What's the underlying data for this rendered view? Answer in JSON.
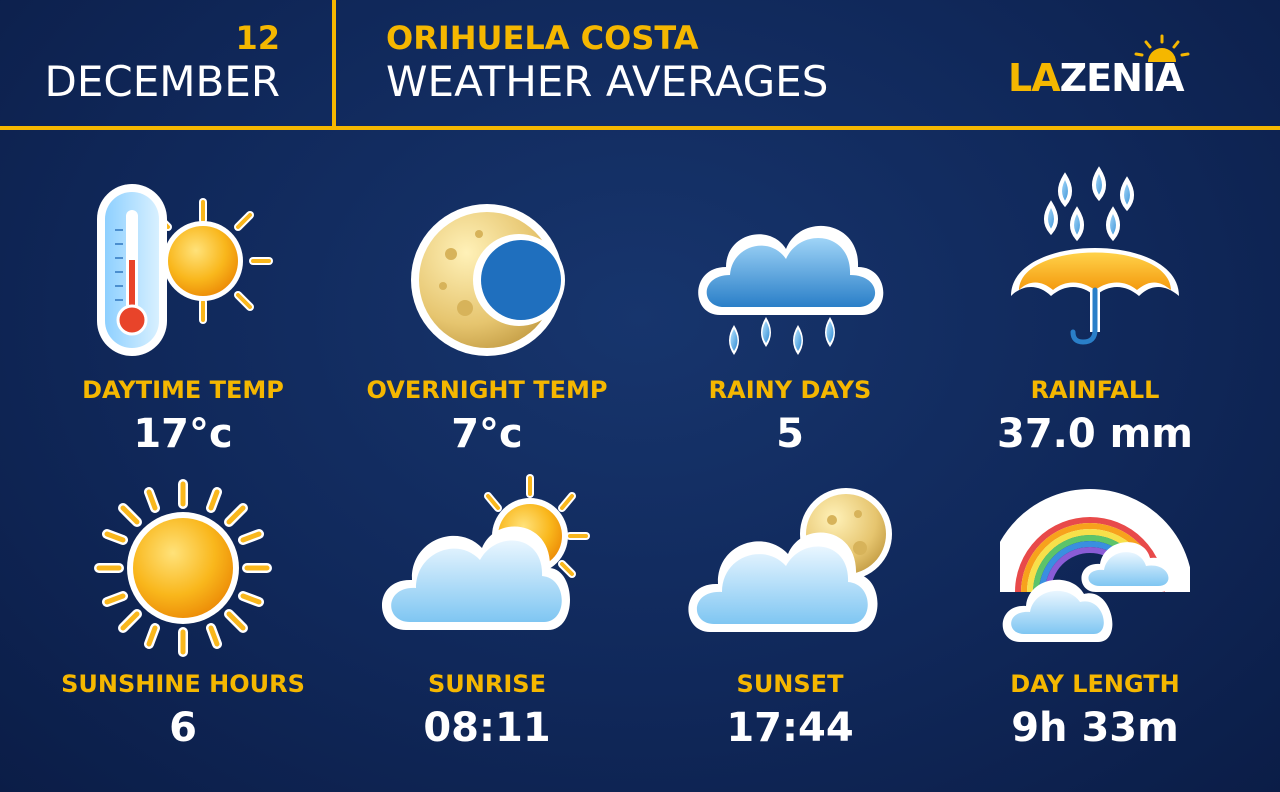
{
  "header": {
    "day": "12",
    "month": "DECEMBER",
    "place": "ORIHUELA COSTA",
    "subtitle": "WEATHER AVERAGES"
  },
  "logo": {
    "part1": "LA",
    "part2": "ZENIA"
  },
  "colors": {
    "accent": "#f5b700",
    "background": "#10285a",
    "value_text": "#ffffff"
  },
  "stats": [
    {
      "label": "DAYTIME TEMP",
      "value": "17°c",
      "icon": "thermometer-sun-icon"
    },
    {
      "label": "OVERNIGHT TEMP",
      "value": "7°c",
      "icon": "moon-icon"
    },
    {
      "label": "RAINY DAYS",
      "value": "5",
      "icon": "rain-cloud-icon"
    },
    {
      "label": "RAINFALL",
      "value": "37.0 mm",
      "icon": "umbrella-rain-icon"
    },
    {
      "label": "SUNSHINE HOURS",
      "value": "6",
      "icon": "sun-icon"
    },
    {
      "label": "SUNRISE",
      "value": "08:11",
      "icon": "sun-cloud-icon"
    },
    {
      "label": "SUNSET",
      "value": "17:44",
      "icon": "moon-cloud-icon"
    },
    {
      "label": "DAY LENGTH",
      "value": "9h 33m",
      "icon": "rainbow-cloud-icon"
    }
  ]
}
